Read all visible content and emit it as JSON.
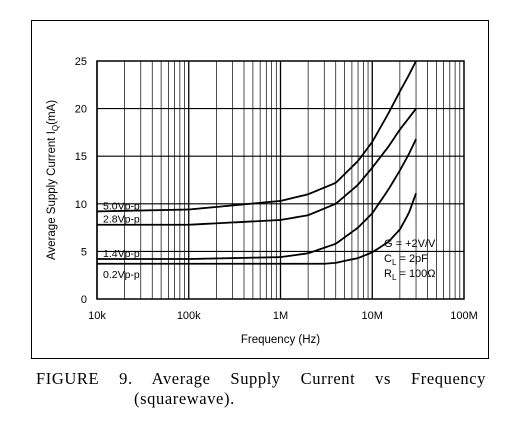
{
  "chart_data": {
    "type": "line",
    "xscale": "log",
    "xlim": [
      10000,
      100000000
    ],
    "ylim": [
      0,
      25
    ],
    "xlabel": "Frequency (Hz)",
    "ylabel_main": "Average Supply Current I",
    "ylabel_sub": "Q",
    "ylabel_tail": "(mA)",
    "grid": true,
    "xticks": [
      {
        "value": 10000,
        "label": "10k"
      },
      {
        "value": 100000,
        "label": "100k"
      },
      {
        "value": 1000000,
        "label": "1M"
      },
      {
        "value": 10000000,
        "label": "10M"
      },
      {
        "value": 100000000,
        "label": "100M"
      }
    ],
    "yticks": [
      {
        "value": 0,
        "label": "0"
      },
      {
        "value": 5,
        "label": "5"
      },
      {
        "value": 10,
        "label": "10"
      },
      {
        "value": 15,
        "label": "15"
      },
      {
        "value": 20,
        "label": "20"
      },
      {
        "value": 25,
        "label": "25"
      }
    ],
    "series": [
      {
        "name": "5.0Vp-p",
        "x": [
          10000,
          100000,
          1000000,
          2000000,
          4000000,
          7000000,
          10000000,
          15000000,
          20000000,
          25000000,
          30000000
        ],
        "y": [
          9.2,
          9.4,
          10.3,
          11.0,
          12.2,
          14.5,
          16.5,
          19.5,
          21.8,
          23.5,
          25.0
        ]
      },
      {
        "name": "2.8Vp-p",
        "x": [
          10000,
          100000,
          1000000,
          2000000,
          4000000,
          7000000,
          10000000,
          15000000,
          20000000,
          25000000,
          30000000
        ],
        "y": [
          7.8,
          7.8,
          8.3,
          8.8,
          10.0,
          12.0,
          13.8,
          16.0,
          17.8,
          19.0,
          20.0
        ]
      },
      {
        "name": "1.4Vp-p",
        "x": [
          10000,
          100000,
          1000000,
          2000000,
          4000000,
          7000000,
          10000000,
          15000000,
          20000000,
          25000000,
          30000000
        ],
        "y": [
          4.2,
          4.2,
          4.4,
          4.8,
          5.8,
          7.5,
          9.0,
          11.5,
          13.5,
          15.2,
          16.8
        ]
      },
      {
        "name": "0.2Vp-p",
        "x": [
          10000,
          100000,
          1000000,
          3000000,
          4000000,
          7000000,
          10000000,
          15000000,
          20000000,
          25000000,
          30000000
        ],
        "y": [
          3.7,
          3.7,
          3.7,
          3.7,
          3.8,
          4.3,
          4.9,
          6.0,
          7.3,
          9.0,
          11.1
        ]
      }
    ],
    "annotation_lines": [
      {
        "main": "G = +2V/V",
        "sub": "",
        "tail": ""
      },
      {
        "main": "C",
        "sub": "L",
        "tail": " = 2pF"
      },
      {
        "main": "R",
        "sub": "L",
        "tail": " = 100Ω"
      }
    ]
  },
  "caption": {
    "line1": "FIGURE 9. Average Supply Current vs Frequency",
    "line2": "(squarewave)."
  }
}
